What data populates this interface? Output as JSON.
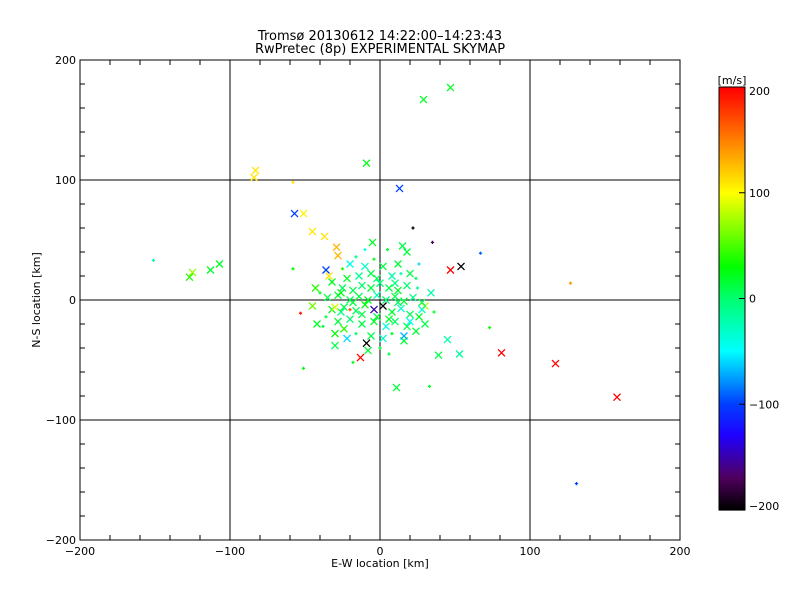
{
  "chart_data": {
    "type": "scatter",
    "title": "Tromsø 20130612 14:22:00–14:23:43",
    "subtitle": "RwPretec (8p) EXPERIMENTAL SKYMAP",
    "xlabel": "E-W location [km]",
    "ylabel": "N-S location [km]",
    "xlim": [
      -200,
      200
    ],
    "ylim": [
      -200,
      200
    ],
    "xticks": [
      -200,
      -100,
      0,
      100,
      200
    ],
    "yticks": [
      -200,
      -100,
      0,
      100,
      200
    ],
    "xtick_labels": [
      "−200",
      "−100",
      "0",
      "100",
      "200"
    ],
    "ytick_labels": [
      "−200",
      "−100",
      "0",
      "100",
      "200"
    ],
    "grid": true,
    "colorbar": {
      "label": "[m/s]",
      "range": [
        -200,
        200
      ],
      "ticks": [
        200,
        100,
        0,
        -100,
        -200
      ],
      "tick_labels": [
        "200",
        "100",
        "0",
        "−100",
        "−200"
      ]
    },
    "point_format": "[x_km, y_km, velocity_m_s, marker]",
    "points": [
      [
        47,
        177,
        20,
        "x"
      ],
      [
        29,
        167,
        20,
        "x"
      ],
      [
        -9,
        114,
        25,
        "x"
      ],
      [
        -83,
        108,
        110,
        "x"
      ],
      [
        -84,
        102,
        110,
        "x"
      ],
      [
        13,
        93,
        -100,
        "x"
      ],
      [
        -57,
        72,
        -100,
        "x"
      ],
      [
        -51,
        72,
        105,
        "x"
      ],
      [
        -58,
        98,
        110,
        "+"
      ],
      [
        -45,
        57,
        110,
        "x"
      ],
      [
        -37,
        53,
        110,
        "x"
      ],
      [
        -29,
        44,
        130,
        "x"
      ],
      [
        -28,
        37,
        130,
        "x"
      ],
      [
        22,
        60,
        -200,
        "+"
      ],
      [
        35,
        48,
        -170,
        "+"
      ],
      [
        67,
        39,
        -90,
        "+"
      ],
      [
        -36,
        25,
        -100,
        "x"
      ],
      [
        47,
        25,
        200,
        "x"
      ],
      [
        54,
        28,
        -200,
        "x"
      ],
      [
        -151,
        33,
        -20,
        "+"
      ],
      [
        -125,
        23,
        70,
        "x"
      ],
      [
        -127,
        19,
        40,
        "x"
      ],
      [
        -113,
        25,
        20,
        "x"
      ],
      [
        -107,
        30,
        20,
        "x"
      ],
      [
        -58,
        26,
        30,
        "+"
      ],
      [
        -43,
        10,
        40,
        "x"
      ],
      [
        127,
        14,
        140,
        "+"
      ],
      [
        -53,
        -11,
        190,
        "+"
      ],
      [
        73,
        -23,
        35,
        "+"
      ],
      [
        45,
        -33,
        -20,
        "x"
      ],
      [
        53,
        -45,
        -15,
        "x"
      ],
      [
        81,
        -44,
        200,
        "x"
      ],
      [
        39,
        -46,
        10,
        "x"
      ],
      [
        117,
        -53,
        200,
        "x"
      ],
      [
        158,
        -81,
        200,
        "x"
      ],
      [
        -13,
        -48,
        200,
        "x"
      ],
      [
        11,
        -73,
        15,
        "x"
      ],
      [
        33,
        -72,
        20,
        "+"
      ],
      [
        -51,
        -57,
        30,
        "+"
      ],
      [
        131,
        -153,
        -100,
        "+"
      ],
      [
        -9,
        -36,
        -200,
        "x"
      ],
      [
        -22,
        -32,
        -60,
        "x"
      ],
      [
        -30,
        -38,
        10,
        "x"
      ],
      [
        -18,
        -52,
        20,
        "+"
      ],
      [
        30,
        -5,
        80,
        "x"
      ],
      [
        -45,
        -5,
        60,
        "x"
      ],
      [
        -20,
        30,
        -40,
        "x"
      ],
      [
        -5,
        48,
        20,
        "x"
      ],
      [
        15,
        45,
        10,
        "x"
      ],
      [
        -10,
        42,
        -50,
        "+"
      ],
      [
        5,
        42,
        20,
        "+"
      ],
      [
        -25,
        26,
        40,
        "+"
      ],
      [
        -14,
        20,
        -10,
        "x"
      ],
      [
        -2,
        18,
        5,
        "x"
      ],
      [
        8,
        20,
        -20,
        "x"
      ],
      [
        20,
        22,
        10,
        "x"
      ],
      [
        -32,
        15,
        20,
        "x"
      ],
      [
        -25,
        10,
        5,
        "x"
      ],
      [
        -18,
        8,
        10,
        "x"
      ],
      [
        -12,
        12,
        0,
        "x"
      ],
      [
        -6,
        10,
        15,
        "x"
      ],
      [
        0,
        14,
        -5,
        "x"
      ],
      [
        6,
        10,
        10,
        "x"
      ],
      [
        12,
        8,
        20,
        "x"
      ],
      [
        18,
        12,
        0,
        "x"
      ],
      [
        25,
        10,
        -10,
        "+"
      ],
      [
        -35,
        2,
        10,
        "x"
      ],
      [
        -28,
        4,
        15,
        "x"
      ],
      [
        -20,
        0,
        5,
        "x"
      ],
      [
        -14,
        3,
        10,
        "x"
      ],
      [
        -8,
        0,
        20,
        "x"
      ],
      [
        -2,
        4,
        -20,
        "x"
      ],
      [
        4,
        0,
        0,
        "x"
      ],
      [
        10,
        3,
        10,
        "x"
      ],
      [
        16,
        -1,
        15,
        "x"
      ],
      [
        22,
        2,
        -10,
        "x"
      ],
      [
        28,
        -2,
        10,
        "x"
      ],
      [
        -32,
        -8,
        20,
        "x"
      ],
      [
        -24,
        -6,
        10,
        "x"
      ],
      [
        -16,
        -9,
        5,
        "x"
      ],
      [
        -10,
        -4,
        30,
        "x"
      ],
      [
        -4,
        -8,
        -150,
        "x"
      ],
      [
        2,
        -5,
        -200,
        "x"
      ],
      [
        8,
        -10,
        15,
        "x"
      ],
      [
        14,
        -7,
        -30,
        "x"
      ],
      [
        20,
        -12,
        5,
        "x"
      ],
      [
        26,
        -14,
        20,
        "x"
      ],
      [
        -28,
        -18,
        15,
        "x"
      ],
      [
        -20,
        -16,
        0,
        "x"
      ],
      [
        -12,
        -20,
        10,
        "x"
      ],
      [
        -4,
        -18,
        20,
        "x"
      ],
      [
        4,
        -22,
        -40,
        "x"
      ],
      [
        10,
        -18,
        5,
        "x"
      ],
      [
        18,
        -22,
        10,
        "x"
      ],
      [
        24,
        -26,
        15,
        "x"
      ],
      [
        -16,
        -28,
        5,
        "+"
      ],
      [
        -6,
        -30,
        10,
        "x"
      ],
      [
        2,
        -32,
        -30,
        "x"
      ],
      [
        8,
        -28,
        20,
        "+"
      ],
      [
        16,
        -34,
        15,
        "x"
      ],
      [
        -24,
        -24,
        40,
        "x"
      ],
      [
        -36,
        -14,
        10,
        "+"
      ],
      [
        -40,
        6,
        20,
        "+"
      ],
      [
        34,
        6,
        -20,
        "x"
      ],
      [
        36,
        -10,
        20,
        "+"
      ],
      [
        -10,
        28,
        -30,
        "x"
      ],
      [
        2,
        28,
        10,
        "x"
      ],
      [
        12,
        30,
        15,
        "x"
      ],
      [
        -4,
        34,
        20,
        "+"
      ],
      [
        -16,
        36,
        -10,
        "+"
      ],
      [
        0,
        -40,
        20,
        "+"
      ],
      [
        -8,
        -42,
        15,
        "x"
      ],
      [
        6,
        -45,
        10,
        "+"
      ],
      [
        -26,
        6,
        25,
        "x"
      ],
      [
        -6,
        22,
        10,
        "x"
      ],
      [
        10,
        14,
        -5,
        "x"
      ],
      [
        -22,
        18,
        20,
        "x"
      ],
      [
        14,
        22,
        -25,
        "+"
      ],
      [
        24,
        18,
        5,
        "+"
      ],
      [
        -30,
        -28,
        30,
        "x"
      ],
      [
        -2,
        -14,
        15,
        "x"
      ],
      [
        -12,
        -12,
        10,
        "x"
      ],
      [
        6,
        -16,
        20,
        "x"
      ],
      [
        12,
        -2,
        5,
        "x"
      ],
      [
        -18,
        -2,
        15,
        "x"
      ],
      [
        -26,
        -10,
        -10,
        "x"
      ],
      [
        20,
        -18,
        -50,
        "x"
      ],
      [
        30,
        -20,
        10,
        "x"
      ],
      [
        -38,
        -22,
        15,
        "+"
      ],
      [
        26,
        30,
        -60,
        "+"
      ],
      [
        28,
        -8,
        -30,
        "x"
      ],
      [
        -34,
        20,
        110,
        "x"
      ],
      [
        -30,
        -6,
        90,
        "x"
      ],
      [
        -42,
        -20,
        20,
        "x"
      ],
      [
        18,
        40,
        15,
        "x"
      ],
      [
        -20,
        -8,
        170,
        "+"
      ],
      [
        16,
        -30,
        -70,
        "x"
      ]
    ]
  }
}
